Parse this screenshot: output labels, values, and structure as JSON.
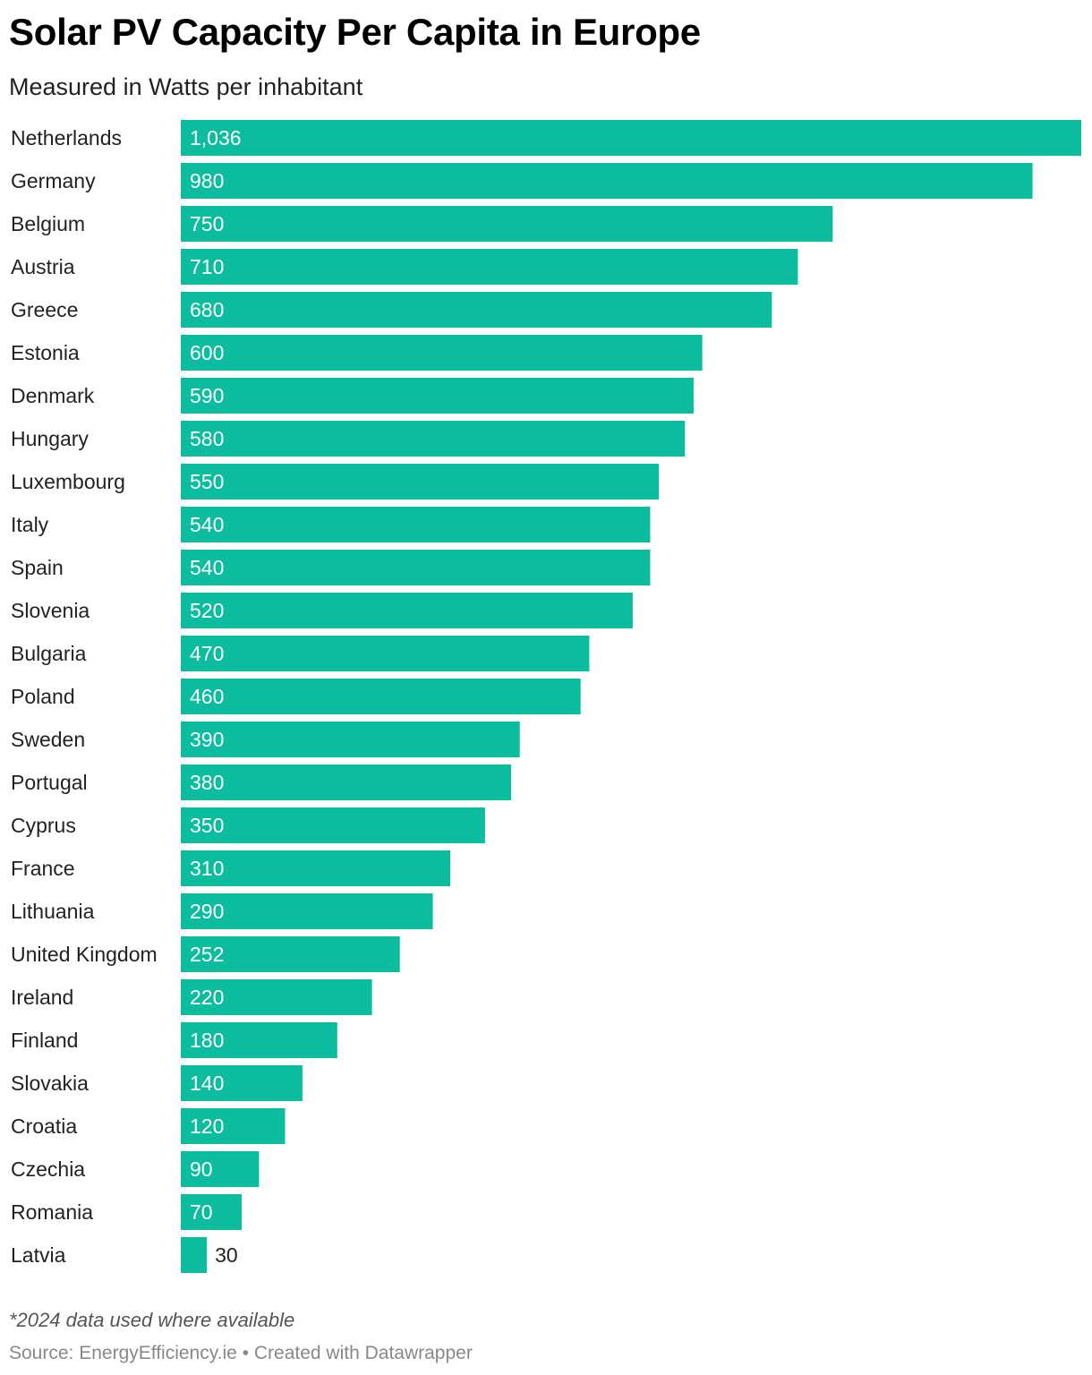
{
  "chart_data": {
    "type": "bar",
    "orientation": "horizontal",
    "title": "Solar PV Capacity Per Capita in Europe",
    "subtitle": "Measured in Watts per inhabitant",
    "categories": [
      "Netherlands",
      "Germany",
      "Belgium",
      "Austria",
      "Greece",
      "Estonia",
      "Denmark",
      "Hungary",
      "Luxembourg",
      "Italy",
      "Spain",
      "Slovenia",
      "Bulgaria",
      "Poland",
      "Sweden",
      "Portugal",
      "Cyprus",
      "France",
      "Lithuania",
      "United Kingdom",
      "Ireland",
      "Finland",
      "Slovakia",
      "Croatia",
      "Czechia",
      "Romania",
      "Latvia"
    ],
    "values": [
      1036,
      980,
      750,
      710,
      680,
      600,
      590,
      580,
      550,
      540,
      540,
      520,
      470,
      460,
      390,
      380,
      350,
      310,
      290,
      252,
      220,
      180,
      140,
      120,
      90,
      70,
      30
    ],
    "value_labels": [
      "1,036",
      "980",
      "750",
      "710",
      "680",
      "600",
      "590",
      "580",
      "550",
      "540",
      "540",
      "520",
      "470",
      "460",
      "390",
      "380",
      "350",
      "310",
      "290",
      "252",
      "220",
      "180",
      "140",
      "120",
      "90",
      "70",
      "30"
    ],
    "xlim": [
      0,
      1036
    ],
    "bar_color": "#0bbc9f",
    "label_inside_color": "#ffffff",
    "label_outside_color": "#222222",
    "grid": false,
    "legend": "none"
  },
  "footer": {
    "note": "*2024 data used where available",
    "source": "Source: EnergyEfficiency.ie • Created with Datawrapper"
  }
}
